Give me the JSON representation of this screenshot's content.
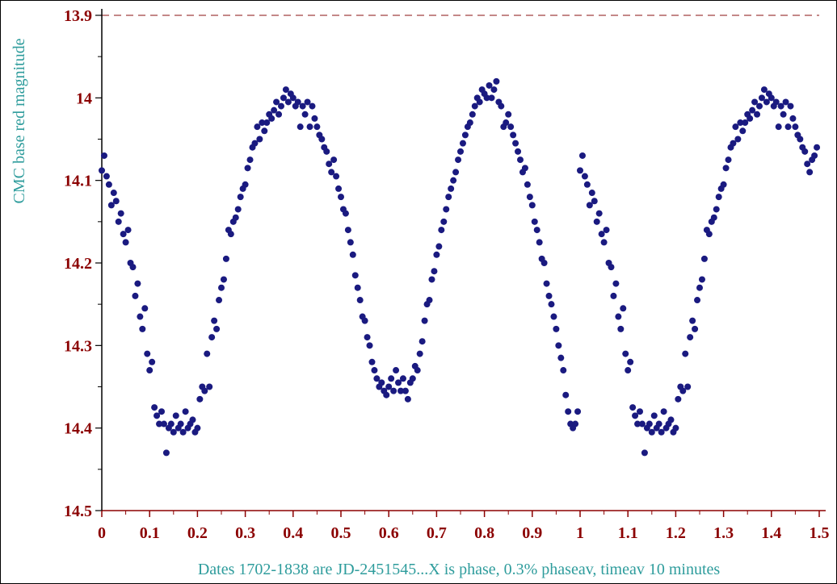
{
  "chart_data": {
    "type": "scatter",
    "title": "",
    "ylabel": "CMC base red magnitude",
    "xlabel": "Dates  1702-1838 are JD-2451545...X is phase, 0.3% phaseav, timeav  10 minutes",
    "xlim": [
      0,
      1.5
    ],
    "ylim": [
      14.5,
      13.9
    ],
    "y_inverted": true,
    "x_ticks": [
      "0",
      "0.1",
      "0.2",
      "0.3",
      "0.4",
      "0.5",
      "0.6",
      "0.7",
      "0.8",
      "0.9",
      "1",
      "1.1",
      "1.2",
      "1.3",
      "1.4",
      "1.5"
    ],
    "y_ticks": [
      "13.9",
      "14",
      "14.1",
      "14.2",
      "14.3",
      "14.4",
      "14.5"
    ],
    "reference_line": 13.9,
    "colors": {
      "points": "#1a1a80",
      "tick_labels": "#8b0000",
      "axis_titles": "#2e9c9c",
      "axes": "#000000",
      "reference_line": "#a04040"
    },
    "grid": false,
    "series": [
      {
        "points": [
          [
            0.0,
            14.088
          ],
          [
            0.005,
            14.07
          ],
          [
            0.01,
            14.095
          ],
          [
            0.015,
            14.105
          ],
          [
            0.02,
            14.13
          ],
          [
            0.025,
            14.115
          ],
          [
            0.03,
            14.125
          ],
          [
            0.035,
            14.15
          ],
          [
            0.04,
            14.14
          ],
          [
            0.045,
            14.165
          ],
          [
            0.05,
            14.175
          ],
          [
            0.055,
            14.16
          ],
          [
            0.06,
            14.2
          ],
          [
            0.065,
            14.205
          ],
          [
            0.07,
            14.24
          ],
          [
            0.075,
            14.225
          ],
          [
            0.08,
            14.265
          ],
          [
            0.085,
            14.28
          ],
          [
            0.09,
            14.255
          ],
          [
            0.095,
            14.31
          ],
          [
            0.1,
            14.33
          ],
          [
            0.105,
            14.32
          ],
          [
            0.11,
            14.375
          ],
          [
            0.115,
            14.385
          ],
          [
            0.12,
            14.395
          ],
          [
            0.125,
            14.38
          ],
          [
            0.13,
            14.395
          ],
          [
            0.135,
            14.43
          ],
          [
            0.14,
            14.4
          ],
          [
            0.145,
            14.395
          ],
          [
            0.15,
            14.405
          ],
          [
            0.155,
            14.385
          ],
          [
            0.16,
            14.4
          ],
          [
            0.165,
            14.395
          ],
          [
            0.17,
            14.405
          ],
          [
            0.175,
            14.38
          ],
          [
            0.18,
            14.4
          ],
          [
            0.185,
            14.395
          ],
          [
            0.19,
            14.39
          ],
          [
            0.195,
            14.405
          ],
          [
            0.2,
            14.4
          ],
          [
            0.205,
            14.365
          ],
          [
            0.21,
            14.35
          ],
          [
            0.215,
            14.355
          ],
          [
            0.22,
            14.31
          ],
          [
            0.225,
            14.35
          ],
          [
            0.23,
            14.29
          ],
          [
            0.235,
            14.27
          ],
          [
            0.24,
            14.28
          ],
          [
            0.245,
            14.245
          ],
          [
            0.25,
            14.23
          ],
          [
            0.255,
            14.22
          ],
          [
            0.26,
            14.195
          ],
          [
            0.265,
            14.16
          ],
          [
            0.27,
            14.165
          ],
          [
            0.275,
            14.15
          ],
          [
            0.28,
            14.145
          ],
          [
            0.285,
            14.135
          ],
          [
            0.29,
            14.12
          ],
          [
            0.295,
            14.11
          ],
          [
            0.3,
            14.105
          ],
          [
            0.305,
            14.085
          ],
          [
            0.31,
            14.075
          ],
          [
            0.315,
            14.06
          ],
          [
            0.32,
            14.055
          ],
          [
            0.325,
            14.035
          ],
          [
            0.33,
            14.05
          ],
          [
            0.335,
            14.03
          ],
          [
            0.34,
            14.04
          ],
          [
            0.345,
            14.03
          ],
          [
            0.35,
            14.02
          ],
          [
            0.355,
            14.025
          ],
          [
            0.36,
            14.015
          ],
          [
            0.365,
            14.005
          ],
          [
            0.37,
            14.02
          ],
          [
            0.375,
            14.01
          ],
          [
            0.38,
            14.0
          ],
          [
            0.385,
            13.99
          ],
          [
            0.39,
            14.005
          ],
          [
            0.395,
            13.995
          ],
          [
            0.4,
            14.0
          ],
          [
            0.405,
            14.01
          ],
          [
            0.41,
            14.005
          ],
          [
            0.415,
            14.035
          ],
          [
            0.42,
            14.01
          ],
          [
            0.425,
            14.02
          ],
          [
            0.43,
            14.005
          ],
          [
            0.435,
            14.035
          ],
          [
            0.44,
            14.01
          ],
          [
            0.445,
            14.025
          ],
          [
            0.45,
            14.035
          ],
          [
            0.455,
            14.045
          ],
          [
            0.46,
            14.05
          ],
          [
            0.465,
            14.06
          ],
          [
            0.47,
            14.065
          ],
          [
            0.475,
            14.08
          ],
          [
            0.48,
            14.09
          ],
          [
            0.485,
            14.075
          ],
          [
            0.49,
            14.095
          ],
          [
            0.495,
            14.11
          ],
          [
            0.5,
            14.12
          ],
          [
            0.505,
            14.135
          ],
          [
            0.51,
            14.14
          ],
          [
            0.515,
            14.16
          ],
          [
            0.52,
            14.175
          ],
          [
            0.525,
            14.19
          ],
          [
            0.53,
            14.215
          ],
          [
            0.535,
            14.23
          ],
          [
            0.54,
            14.245
          ],
          [
            0.545,
            14.265
          ],
          [
            0.55,
            14.27
          ],
          [
            0.555,
            14.29
          ],
          [
            0.56,
            14.3
          ],
          [
            0.565,
            14.32
          ],
          [
            0.57,
            14.33
          ],
          [
            0.575,
            14.34
          ],
          [
            0.58,
            14.35
          ],
          [
            0.585,
            14.345
          ],
          [
            0.59,
            14.355
          ],
          [
            0.595,
            14.36
          ],
          [
            0.6,
            14.35
          ],
          [
            0.605,
            14.34
          ],
          [
            0.61,
            14.355
          ],
          [
            0.615,
            14.33
          ],
          [
            0.62,
            14.345
          ],
          [
            0.625,
            14.355
          ],
          [
            0.63,
            14.34
          ],
          [
            0.635,
            14.355
          ],
          [
            0.64,
            14.365
          ],
          [
            0.645,
            14.345
          ],
          [
            0.65,
            14.34
          ],
          [
            0.655,
            14.325
          ],
          [
            0.66,
            14.33
          ],
          [
            0.665,
            14.31
          ],
          [
            0.67,
            14.295
          ],
          [
            0.675,
            14.27
          ],
          [
            0.68,
            14.25
          ],
          [
            0.685,
            14.245
          ],
          [
            0.69,
            14.22
          ],
          [
            0.695,
            14.21
          ],
          [
            0.7,
            14.19
          ],
          [
            0.705,
            14.18
          ],
          [
            0.71,
            14.16
          ],
          [
            0.715,
            14.15
          ],
          [
            0.72,
            14.135
          ],
          [
            0.725,
            14.12
          ],
          [
            0.73,
            14.11
          ],
          [
            0.735,
            14.1
          ],
          [
            0.74,
            14.09
          ],
          [
            0.745,
            14.075
          ],
          [
            0.75,
            14.065
          ],
          [
            0.755,
            14.055
          ],
          [
            0.76,
            14.045
          ],
          [
            0.765,
            14.035
          ],
          [
            0.77,
            14.03
          ],
          [
            0.775,
            14.02
          ],
          [
            0.78,
            14.01
          ],
          [
            0.785,
            14.0
          ],
          [
            0.79,
            14.005
          ],
          [
            0.795,
            13.99
          ],
          [
            0.8,
            13.995
          ],
          [
            0.805,
            14.0
          ],
          [
            0.81,
            13.985
          ],
          [
            0.815,
            14.0
          ],
          [
            0.82,
            13.99
          ],
          [
            0.825,
            13.98
          ],
          [
            0.83,
            14.005
          ],
          [
            0.835,
            14.01
          ],
          [
            0.84,
            14.035
          ],
          [
            0.845,
            14.03
          ],
          [
            0.85,
            14.02
          ],
          [
            0.855,
            14.035
          ],
          [
            0.86,
            14.045
          ],
          [
            0.865,
            14.055
          ],
          [
            0.87,
            14.065
          ],
          [
            0.875,
            14.075
          ],
          [
            0.88,
            14.09
          ],
          [
            0.885,
            14.085
          ],
          [
            0.89,
            14.105
          ],
          [
            0.895,
            14.12
          ],
          [
            0.9,
            14.13
          ],
          [
            0.905,
            14.15
          ],
          [
            0.91,
            14.16
          ],
          [
            0.915,
            14.175
          ],
          [
            0.92,
            14.195
          ],
          [
            0.925,
            14.2
          ],
          [
            0.93,
            14.225
          ],
          [
            0.935,
            14.24
          ],
          [
            0.94,
            14.25
          ],
          [
            0.945,
            14.265
          ],
          [
            0.95,
            14.28
          ],
          [
            0.955,
            14.3
          ],
          [
            0.96,
            14.315
          ],
          [
            0.965,
            14.33
          ],
          [
            0.97,
            14.36
          ],
          [
            0.975,
            14.38
          ],
          [
            0.98,
            14.395
          ],
          [
            0.985,
            14.4
          ],
          [
            0.99,
            14.395
          ],
          [
            0.995,
            14.38
          ],
          [
            1.0,
            14.088
          ],
          [
            1.005,
            14.07
          ],
          [
            1.01,
            14.095
          ],
          [
            1.015,
            14.105
          ],
          [
            1.02,
            14.13
          ],
          [
            1.025,
            14.115
          ],
          [
            1.03,
            14.125
          ],
          [
            1.035,
            14.15
          ],
          [
            1.04,
            14.14
          ],
          [
            1.045,
            14.165
          ],
          [
            1.05,
            14.175
          ],
          [
            1.055,
            14.16
          ],
          [
            1.06,
            14.2
          ],
          [
            1.065,
            14.205
          ],
          [
            1.07,
            14.24
          ],
          [
            1.075,
            14.225
          ],
          [
            1.08,
            14.265
          ],
          [
            1.085,
            14.28
          ],
          [
            1.09,
            14.255
          ],
          [
            1.095,
            14.31
          ],
          [
            1.1,
            14.33
          ],
          [
            1.105,
            14.32
          ],
          [
            1.11,
            14.375
          ],
          [
            1.115,
            14.385
          ],
          [
            1.12,
            14.395
          ],
          [
            1.125,
            14.38
          ],
          [
            1.13,
            14.395
          ],
          [
            1.135,
            14.43
          ],
          [
            1.14,
            14.4
          ],
          [
            1.145,
            14.395
          ],
          [
            1.15,
            14.405
          ],
          [
            1.155,
            14.385
          ],
          [
            1.16,
            14.4
          ],
          [
            1.165,
            14.395
          ],
          [
            1.17,
            14.405
          ],
          [
            1.175,
            14.38
          ],
          [
            1.18,
            14.4
          ],
          [
            1.185,
            14.395
          ],
          [
            1.19,
            14.39
          ],
          [
            1.195,
            14.405
          ],
          [
            1.2,
            14.4
          ],
          [
            1.205,
            14.365
          ],
          [
            1.21,
            14.35
          ],
          [
            1.215,
            14.355
          ],
          [
            1.22,
            14.31
          ],
          [
            1.225,
            14.35
          ],
          [
            1.23,
            14.29
          ],
          [
            1.235,
            14.27
          ],
          [
            1.24,
            14.28
          ],
          [
            1.245,
            14.245
          ],
          [
            1.25,
            14.23
          ],
          [
            1.255,
            14.22
          ],
          [
            1.26,
            14.195
          ],
          [
            1.265,
            14.16
          ],
          [
            1.27,
            14.165
          ],
          [
            1.275,
            14.15
          ],
          [
            1.28,
            14.145
          ],
          [
            1.285,
            14.135
          ],
          [
            1.29,
            14.12
          ],
          [
            1.295,
            14.11
          ],
          [
            1.3,
            14.105
          ],
          [
            1.305,
            14.085
          ],
          [
            1.31,
            14.075
          ],
          [
            1.315,
            14.06
          ],
          [
            1.32,
            14.055
          ],
          [
            1.325,
            14.035
          ],
          [
            1.33,
            14.05
          ],
          [
            1.335,
            14.03
          ],
          [
            1.34,
            14.04
          ],
          [
            1.345,
            14.03
          ],
          [
            1.35,
            14.02
          ],
          [
            1.355,
            14.025
          ],
          [
            1.36,
            14.015
          ],
          [
            1.365,
            14.005
          ],
          [
            1.37,
            14.02
          ],
          [
            1.375,
            14.01
          ],
          [
            1.38,
            14.0
          ],
          [
            1.385,
            13.99
          ],
          [
            1.39,
            14.005
          ],
          [
            1.395,
            13.995
          ],
          [
            1.4,
            14.0
          ],
          [
            1.405,
            14.01
          ],
          [
            1.41,
            14.005
          ],
          [
            1.415,
            14.035
          ],
          [
            1.42,
            14.01
          ],
          [
            1.425,
            14.02
          ],
          [
            1.43,
            14.005
          ],
          [
            1.435,
            14.035
          ],
          [
            1.44,
            14.01
          ],
          [
            1.445,
            14.025
          ],
          [
            1.45,
            14.035
          ],
          [
            1.455,
            14.045
          ],
          [
            1.46,
            14.05
          ],
          [
            1.465,
            14.06
          ],
          [
            1.47,
            14.065
          ],
          [
            1.475,
            14.08
          ],
          [
            1.48,
            14.09
          ],
          [
            1.485,
            14.075
          ],
          [
            1.49,
            14.07
          ],
          [
            1.495,
            14.06
          ]
        ]
      }
    ]
  }
}
